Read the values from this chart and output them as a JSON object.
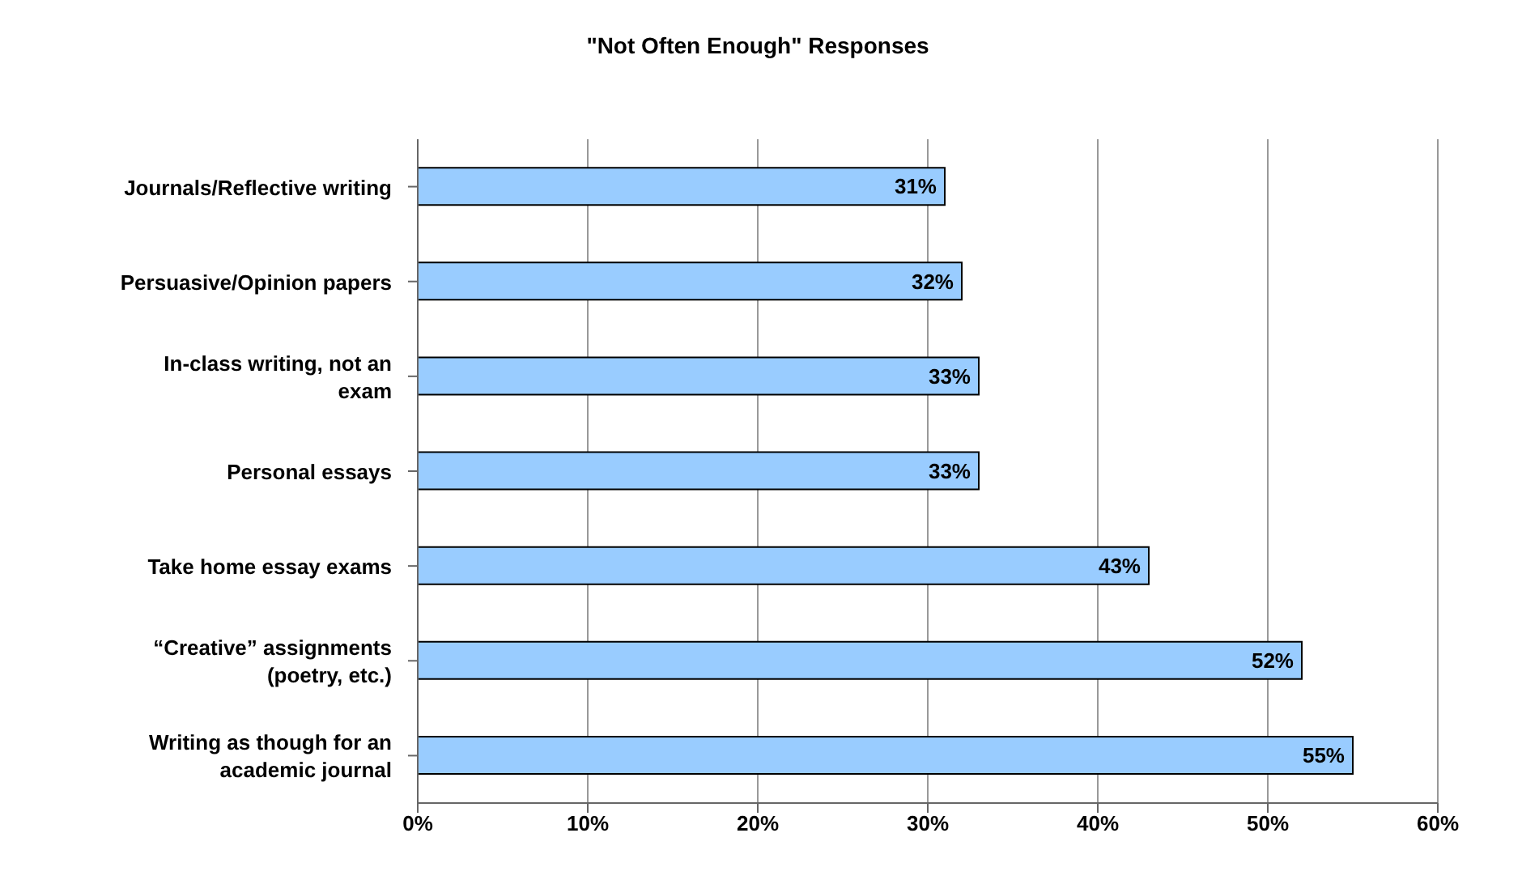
{
  "chart_data": {
    "type": "bar",
    "orientation": "horizontal",
    "title": "\"Not Often Enough\" Responses",
    "categories": [
      "Journals/Reflective writing",
      "Persuasive/Opinion papers",
      "In-class writing, not an exam",
      "Personal essays",
      "Take home essay exams",
      "“Creative” assignments (poetry, etc.)",
      "Writing as though for an academic journal"
    ],
    "values": [
      31,
      32,
      33,
      33,
      43,
      52,
      55
    ],
    "value_labels": [
      "31%",
      "32%",
      "33%",
      "33%",
      "43%",
      "52%",
      "55%"
    ],
    "color": "#99ccff",
    "xlim": [
      0,
      60
    ],
    "xticks": [
      {
        "value": 0,
        "label": "0%"
      },
      {
        "value": 10,
        "label": "10%"
      },
      {
        "value": 20,
        "label": "20%"
      },
      {
        "value": 30,
        "label": "30%"
      },
      {
        "value": 40,
        "label": "40%"
      },
      {
        "value": 50,
        "label": "50%"
      },
      {
        "value": 60,
        "label": "60%"
      }
    ],
    "grid": "x",
    "legend": false
  }
}
